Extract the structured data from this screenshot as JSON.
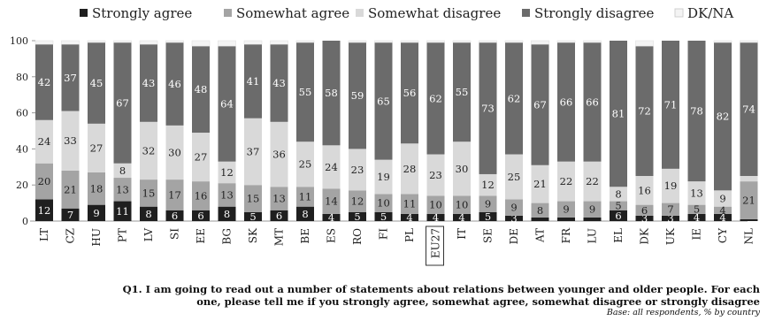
{
  "chart_data": {
    "type": "bar",
    "stacked": true,
    "ylim": [
      0,
      100
    ],
    "yticks": [
      "0",
      "20",
      "40",
      "60",
      "80",
      "100"
    ],
    "legend_position": "top",
    "categories": [
      "LT",
      "CZ",
      "HU",
      "PT",
      "LV",
      "SI",
      "EE",
      "BG",
      "SK",
      "MT",
      "BE",
      "ES",
      "RO",
      "FI",
      "PL",
      "EU27",
      "IT",
      "SE",
      "DE",
      "AT",
      "FR",
      "LU",
      "EL",
      "DK",
      "UK",
      "IE",
      "CY",
      "NL"
    ],
    "highlighted_category": "EU27",
    "series": [
      {
        "name": "Strongly agree",
        "color": "#1f1f1f",
        "text_color": "#ffffff",
        "values": [
          12,
          7,
          9,
          11,
          8,
          6,
          6,
          8,
          5,
          6,
          8,
          4,
          5,
          5,
          4,
          4,
          4,
          5,
          3,
          2,
          2,
          2,
          6,
          3,
          3,
          4,
          4,
          1
        ]
      },
      {
        "name": "Somewhat agree",
        "color": "#a4a4a4",
        "text_color": "#222222",
        "values": [
          20,
          21,
          18,
          13,
          15,
          17,
          16,
          13,
          15,
          13,
          11,
          14,
          12,
          10,
          11,
          10,
          10,
          9,
          9,
          8,
          9,
          9,
          5,
          6,
          7,
          5,
          4,
          21
        ]
      },
      {
        "name": "Somewhat disagree",
        "color": "#d9d9d9",
        "text_color": "#222222",
        "values": [
          24,
          33,
          27,
          8,
          32,
          30,
          27,
          12,
          37,
          36,
          25,
          24,
          23,
          19,
          28,
          23,
          30,
          12,
          25,
          21,
          22,
          22,
          8,
          16,
          19,
          13,
          9,
          3
        ]
      },
      {
        "name": "Strongly disagree",
        "color": "#6b6b6b",
        "text_color": "#ffffff",
        "values": [
          42,
          37,
          45,
          67,
          43,
          46,
          48,
          64,
          41,
          43,
          55,
          58,
          59,
          65,
          56,
          62,
          55,
          73,
          62,
          67,
          66,
          66,
          81,
          72,
          71,
          78,
          82,
          74
        ]
      },
      {
        "name": "DK/NA",
        "color": "#f4f4f4",
        "text_color": "#222222",
        "values": [
          2,
          2,
          1,
          1,
          2,
          1,
          3,
          3,
          2,
          2,
          1,
          0,
          1,
          1,
          1,
          1,
          1,
          1,
          1,
          2,
          1,
          1,
          0,
          3,
          0,
          0,
          1,
          1
        ]
      }
    ],
    "visible_labels": [
      [
        12,
        7,
        9,
        11,
        8,
        6,
        6,
        8,
        5,
        6,
        8,
        4,
        5,
        5,
        4,
        4,
        4,
        5,
        3,
        2,
        2,
        2,
        6,
        3,
        3,
        4,
        4,
        1
      ],
      [
        20,
        21,
        18,
        13,
        15,
        17,
        16,
        13,
        15,
        13,
        11,
        14,
        12,
        10,
        11,
        10,
        10,
        9,
        9,
        8,
        9,
        9,
        5,
        6,
        7,
        5,
        4,
        21
      ],
      [
        24,
        33,
        27,
        8,
        32,
        30,
        27,
        12,
        37,
        36,
        25,
        24,
        23,
        19,
        28,
        23,
        30,
        12,
        25,
        21,
        22,
        22,
        8,
        16,
        19,
        13,
        9,
        null
      ],
      [
        42,
        37,
        45,
        67,
        43,
        46,
        48,
        64,
        41,
        43,
        55,
        58,
        59,
        65,
        56,
        62,
        55,
        73,
        62,
        67,
        66,
        66,
        81,
        72,
        71,
        78,
        82,
        74
      ],
      [
        null,
        null,
        null,
        null,
        null,
        null,
        null,
        null,
        null,
        null,
        null,
        null,
        null,
        null,
        null,
        null,
        null,
        null,
        null,
        null,
        null,
        null,
        null,
        null,
        null,
        null,
        null,
        null
      ]
    ]
  },
  "caption": {
    "question_line1": "Q1. I am going to read out a number of statements about relations between younger and older people. For each",
    "question_line2": "one, please tell me if you strongly agree, somewhat agree, somewhat disagree or strongly disagree",
    "base": "Base: all respondents, % by country"
  }
}
